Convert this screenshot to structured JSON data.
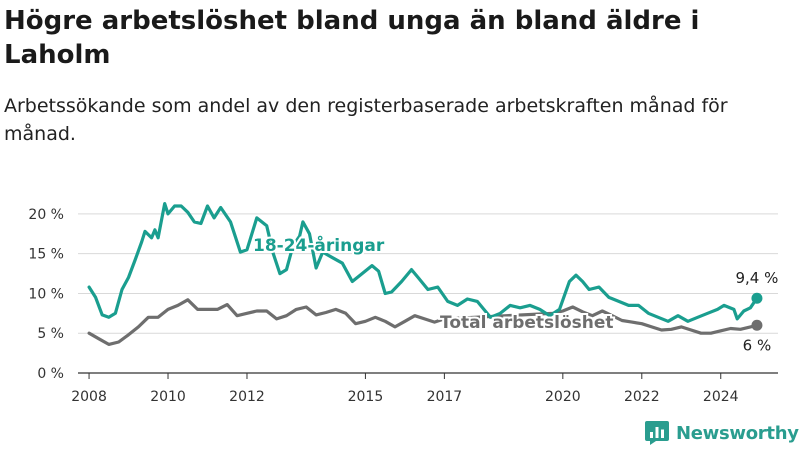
{
  "title": "Högre arbetslöshet bland unga än bland äldre i Laholm",
  "subtitle": "Arbetssökande som andel av den registerbaserade arbetskraften månad för månad.",
  "logo": {
    "name": "Newsworthy",
    "icon": "newsworthy-bar-chart-icon",
    "color": "#2a9d8f"
  },
  "chart_data": {
    "type": "line",
    "x_start": "2008-01",
    "x_end": "2024-12",
    "x_ticks": [
      "2008",
      "2010",
      "2012",
      "2015",
      "2017",
      "2020",
      "2022",
      "2024"
    ],
    "y_ticks": [
      "0 %",
      "5 %",
      "10 %",
      "15 %",
      "20 %"
    ],
    "ylim": [
      0,
      22
    ],
    "grid": true,
    "series": [
      {
        "name": "18-24-åringar",
        "color": "#1a9e8f",
        "end_label": "9,4 %",
        "points": [
          [
            "2008-01",
            10.8
          ],
          [
            "2008-03",
            9.5
          ],
          [
            "2008-05",
            7.3
          ],
          [
            "2008-07",
            7.0
          ],
          [
            "2008-09",
            7.5
          ],
          [
            "2008-11",
            10.5
          ],
          [
            "2009-01",
            12.0
          ],
          [
            "2009-03",
            14.2
          ],
          [
            "2009-05",
            16.5
          ],
          [
            "2009-06",
            17.8
          ],
          [
            "2009-08",
            17.0
          ],
          [
            "2009-09",
            18.0
          ],
          [
            "2009-10",
            17.0
          ],
          [
            "2009-12",
            21.3
          ],
          [
            "2010-01",
            20.0
          ],
          [
            "2010-03",
            21.0
          ],
          [
            "2010-05",
            21.0
          ],
          [
            "2010-07",
            20.2
          ],
          [
            "2010-09",
            19.0
          ],
          [
            "2010-11",
            18.8
          ],
          [
            "2011-01",
            21.0
          ],
          [
            "2011-03",
            19.5
          ],
          [
            "2011-05",
            20.8
          ],
          [
            "2011-08",
            19.0
          ],
          [
            "2011-11",
            15.2
          ],
          [
            "2012-01",
            15.5
          ],
          [
            "2012-04",
            19.5
          ],
          [
            "2012-07",
            18.5
          ],
          [
            "2012-09",
            15.0
          ],
          [
            "2012-11",
            12.5
          ],
          [
            "2013-01",
            13.0
          ],
          [
            "2013-03",
            16.0
          ],
          [
            "2013-05",
            17.2
          ],
          [
            "2013-06",
            19.0
          ],
          [
            "2013-08",
            17.5
          ],
          [
            "2013-10",
            13.2
          ],
          [
            "2013-12",
            15.2
          ],
          [
            "2014-03",
            14.5
          ],
          [
            "2014-06",
            13.8
          ],
          [
            "2014-09",
            11.5
          ],
          [
            "2014-12",
            12.5
          ],
          [
            "2015-03",
            13.5
          ],
          [
            "2015-05",
            12.8
          ],
          [
            "2015-07",
            10.0
          ],
          [
            "2015-09",
            10.2
          ],
          [
            "2015-12",
            11.5
          ],
          [
            "2016-03",
            13.0
          ],
          [
            "2016-05",
            12.0
          ],
          [
            "2016-08",
            10.5
          ],
          [
            "2016-11",
            10.8
          ],
          [
            "2017-02",
            9.0
          ],
          [
            "2017-05",
            8.5
          ],
          [
            "2017-08",
            9.3
          ],
          [
            "2017-11",
            9.0
          ],
          [
            "2018-01",
            8.0
          ],
          [
            "2018-03",
            7.0
          ],
          [
            "2018-06",
            7.5
          ],
          [
            "2018-09",
            8.5
          ],
          [
            "2018-12",
            8.2
          ],
          [
            "2019-03",
            8.5
          ],
          [
            "2019-06",
            8.0
          ],
          [
            "2019-09",
            7.2
          ],
          [
            "2019-12",
            8.0
          ],
          [
            "2020-03",
            11.5
          ],
          [
            "2020-05",
            12.3
          ],
          [
            "2020-07",
            11.5
          ],
          [
            "2020-09",
            10.5
          ],
          [
            "2020-12",
            10.8
          ],
          [
            "2021-03",
            9.5
          ],
          [
            "2021-06",
            9.0
          ],
          [
            "2021-09",
            8.5
          ],
          [
            "2021-12",
            8.5
          ],
          [
            "2022-03",
            7.5
          ],
          [
            "2022-06",
            7.0
          ],
          [
            "2022-09",
            6.5
          ],
          [
            "2022-12",
            7.2
          ],
          [
            "2023-03",
            6.5
          ],
          [
            "2023-06",
            7.0
          ],
          [
            "2023-09",
            7.5
          ],
          [
            "2023-12",
            8.0
          ],
          [
            "2024-02",
            8.5
          ],
          [
            "2024-05",
            8.0
          ],
          [
            "2024-06",
            6.8
          ],
          [
            "2024-08",
            7.8
          ],
          [
            "2024-10",
            8.2
          ],
          [
            "2024-12",
            9.4
          ]
        ]
      },
      {
        "name": "Total arbetslöshet",
        "color": "#6e6e6e",
        "end_label": "6 %",
        "points": [
          [
            "2008-01",
            5.0
          ],
          [
            "2008-04",
            4.3
          ],
          [
            "2008-07",
            3.6
          ],
          [
            "2008-10",
            3.9
          ],
          [
            "2009-01",
            4.8
          ],
          [
            "2009-04",
            5.8
          ],
          [
            "2009-07",
            7.0
          ],
          [
            "2009-10",
            7.0
          ],
          [
            "2010-01",
            8.0
          ],
          [
            "2010-04",
            8.5
          ],
          [
            "2010-07",
            9.2
          ],
          [
            "2010-10",
            8.0
          ],
          [
            "2011-01",
            8.0
          ],
          [
            "2011-04",
            8.0
          ],
          [
            "2011-07",
            8.6
          ],
          [
            "2011-10",
            7.2
          ],
          [
            "2012-01",
            7.5
          ],
          [
            "2012-04",
            7.8
          ],
          [
            "2012-07",
            7.8
          ],
          [
            "2012-10",
            6.8
          ],
          [
            "2013-01",
            7.2
          ],
          [
            "2013-04",
            8.0
          ],
          [
            "2013-07",
            8.3
          ],
          [
            "2013-10",
            7.3
          ],
          [
            "2014-01",
            7.6
          ],
          [
            "2014-04",
            8.0
          ],
          [
            "2014-07",
            7.5
          ],
          [
            "2014-10",
            6.2
          ],
          [
            "2015-01",
            6.5
          ],
          [
            "2015-04",
            7.0
          ],
          [
            "2015-07",
            6.5
          ],
          [
            "2015-10",
            5.8
          ],
          [
            "2016-01",
            6.5
          ],
          [
            "2016-04",
            7.2
          ],
          [
            "2016-07",
            6.8
          ],
          [
            "2016-10",
            6.4
          ],
          [
            "2017-01",
            6.8
          ],
          [
            "2019-10",
            7.5
          ],
          [
            "2020-01",
            7.8
          ],
          [
            "2020-04",
            8.3
          ],
          [
            "2020-07",
            7.7
          ],
          [
            "2020-10",
            7.2
          ],
          [
            "2021-01",
            7.8
          ],
          [
            "2021-04",
            7.2
          ],
          [
            "2021-07",
            6.6
          ],
          [
            "2021-10",
            6.4
          ],
          [
            "2022-01",
            6.2
          ],
          [
            "2022-04",
            5.8
          ],
          [
            "2022-07",
            5.4
          ],
          [
            "2022-10",
            5.5
          ],
          [
            "2023-01",
            5.8
          ],
          [
            "2023-04",
            5.4
          ],
          [
            "2023-07",
            5.0
          ],
          [
            "2023-10",
            5.0
          ],
          [
            "2024-01",
            5.3
          ],
          [
            "2024-04",
            5.6
          ],
          [
            "2024-07",
            5.5
          ],
          [
            "2024-10",
            5.8
          ],
          [
            "2024-12",
            6.0
          ]
        ]
      }
    ]
  }
}
